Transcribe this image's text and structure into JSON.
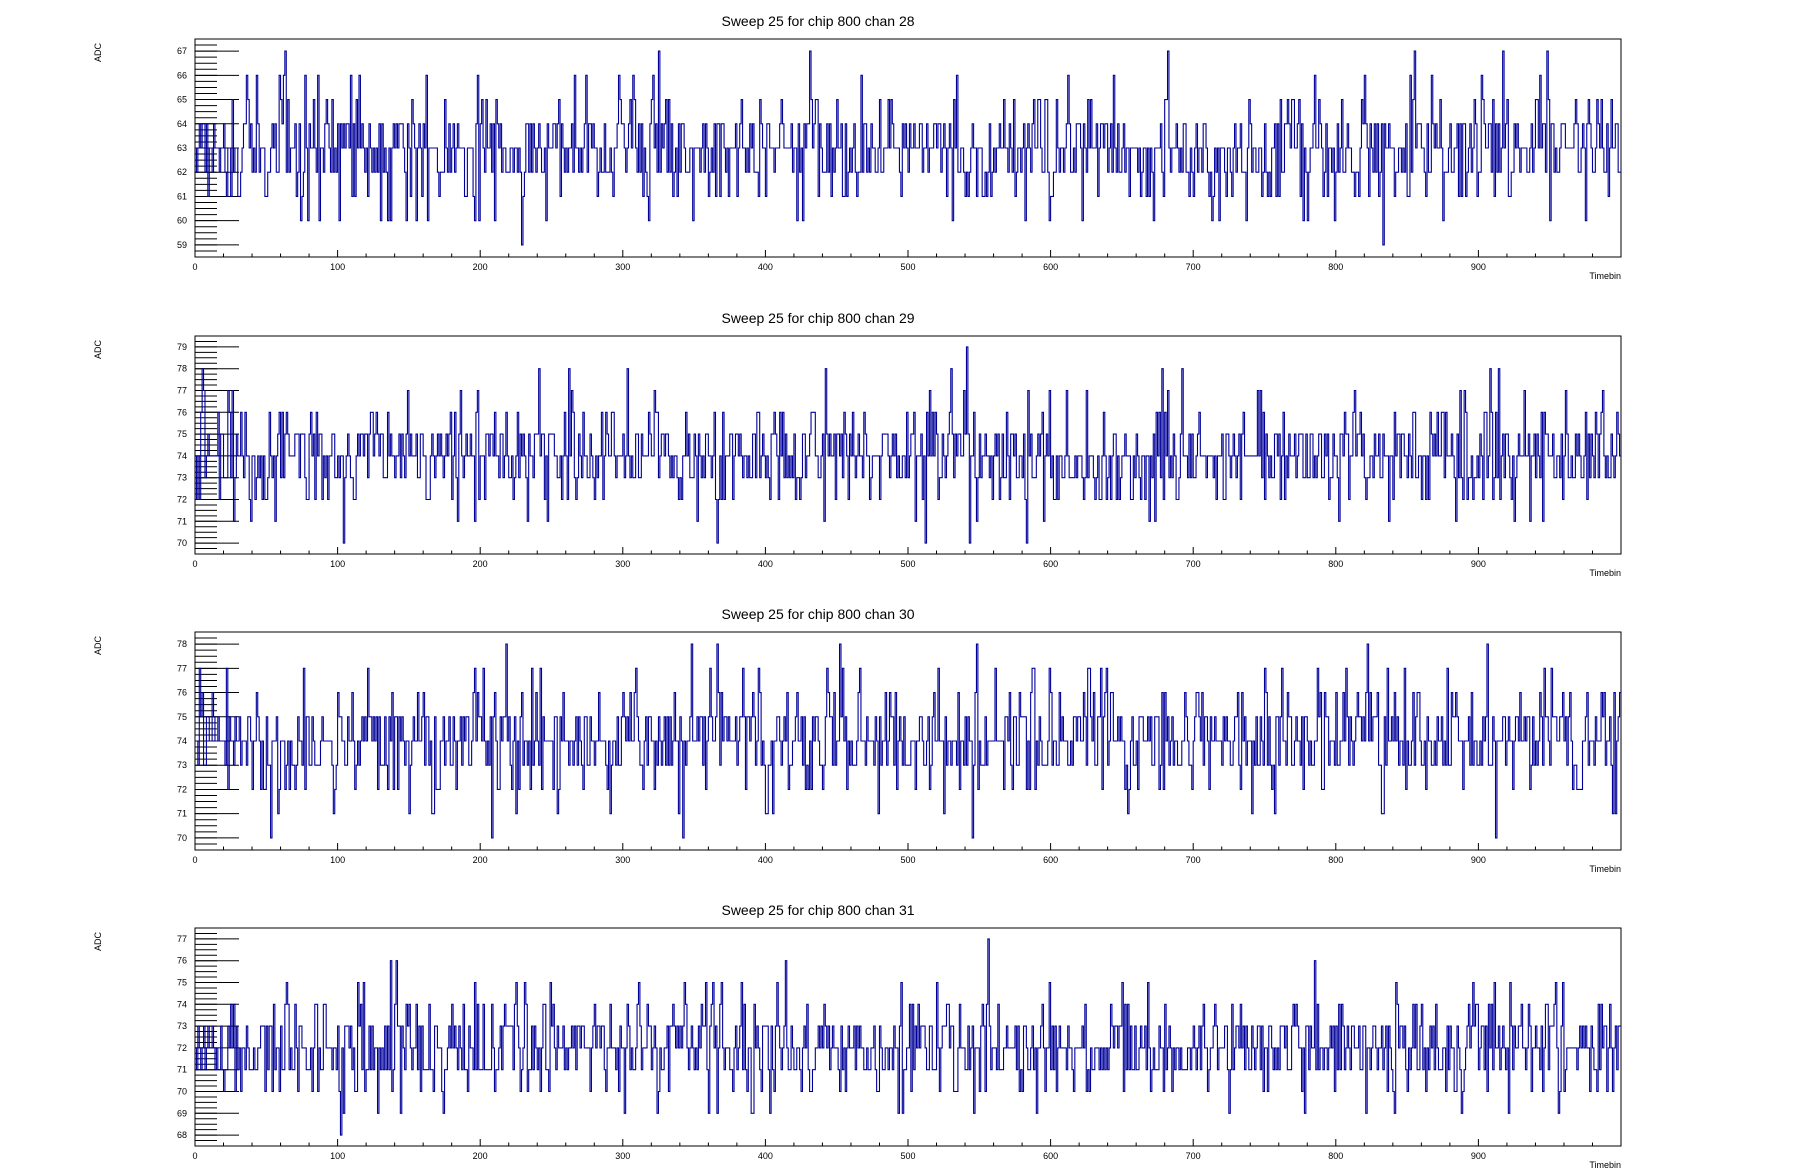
{
  "chart_data": [
    {
      "type": "line",
      "title": "Sweep 25 for chip 800 chan 28",
      "xlabel": "Timebin",
      "ylabel": "ADC",
      "xlim": [
        0,
        1000
      ],
      "ylim": [
        58.5,
        67.5
      ],
      "xticks": [
        0,
        100,
        200,
        300,
        400,
        500,
        600,
        700,
        800,
        900
      ],
      "yticks": [
        59,
        60,
        61,
        62,
        63,
        64,
        65,
        66,
        67
      ],
      "baseline": 63,
      "annotated_points": [
        [
          63,
          67
        ],
        [
          101,
          60
        ],
        [
          137,
          60
        ],
        [
          163,
          60
        ],
        [
          229,
          59
        ],
        [
          325,
          67
        ],
        [
          349,
          60
        ],
        [
          431,
          67
        ],
        [
          531,
          60
        ],
        [
          582,
          60
        ],
        [
          682,
          67
        ],
        [
          799,
          60
        ],
        [
          833,
          59
        ],
        [
          855,
          67
        ],
        [
          875,
          60
        ],
        [
          917,
          67
        ],
        [
          948,
          67
        ]
      ],
      "series": [
        {
          "values": []
        }
      ]
    },
    {
      "type": "line",
      "title": "Sweep 25 for chip 800 chan 29",
      "xlabel": "Timebin",
      "ylabel": "ADC",
      "xlim": [
        0,
        1000
      ],
      "ylim": [
        69.5,
        79.5
      ],
      "xticks": [
        0,
        100,
        200,
        300,
        400,
        500,
        600,
        700,
        800,
        900
      ],
      "yticks": [
        70,
        71,
        72,
        73,
        74,
        75,
        76,
        77,
        78,
        79
      ],
      "baseline": 74,
      "annotated_points": [
        [
          5,
          78
        ],
        [
          104,
          70
        ],
        [
          241,
          78
        ],
        [
          262,
          78
        ],
        [
          303,
          78
        ],
        [
          366,
          70
        ],
        [
          442,
          78
        ],
        [
          512,
          70
        ],
        [
          530,
          78
        ],
        [
          541,
          79
        ],
        [
          543,
          70
        ],
        [
          583,
          70
        ],
        [
          678,
          78
        ],
        [
          692,
          78
        ],
        [
          908,
          78
        ],
        [
          914,
          78
        ]
      ],
      "series": [
        {
          "values": []
        }
      ]
    },
    {
      "type": "line",
      "title": "Sweep 25 for chip 800 chan 30",
      "xlabel": "Timebin",
      "ylabel": "ADC",
      "xlim": [
        0,
        1000
      ],
      "ylim": [
        69.5,
        78.5
      ],
      "xticks": [
        0,
        100,
        200,
        300,
        400,
        500,
        600,
        700,
        800,
        900
      ],
      "yticks": [
        70,
        71,
        72,
        73,
        74,
        75,
        76,
        77,
        78
      ],
      "baseline": 74,
      "annotated_points": [
        [
          53,
          70
        ],
        [
          208,
          70
        ],
        [
          218,
          78
        ],
        [
          342,
          70
        ],
        [
          348,
          78
        ],
        [
          366,
          78
        ],
        [
          452,
          78
        ],
        [
          545,
          70
        ],
        [
          548,
          78
        ],
        [
          822,
          78
        ],
        [
          906,
          78
        ],
        [
          912,
          70
        ]
      ],
      "series": [
        {
          "values": []
        }
      ]
    },
    {
      "type": "line",
      "title": "Sweep 25 for chip 800 chan 31",
      "xlabel": "Timebin",
      "ylabel": "ADC",
      "xlim": [
        0,
        1000
      ],
      "ylim": [
        67.5,
        77.5
      ],
      "xticks": [
        0,
        100,
        200,
        300,
        400,
        500,
        600,
        700,
        800,
        900
      ],
      "yticks": [
        68,
        69,
        70,
        71,
        72,
        73,
        74,
        75,
        76,
        77
      ],
      "baseline": 72,
      "annotated_points": [
        [
          102,
          68
        ],
        [
          137,
          76
        ],
        [
          141,
          76
        ],
        [
          414,
          76
        ],
        [
          556,
          77
        ],
        [
          785,
          76
        ]
      ],
      "series": [
        {
          "values": []
        }
      ]
    }
  ],
  "style": {
    "line_color": "#000099",
    "frame_color": "#000000",
    "background": "#ffffff"
  }
}
